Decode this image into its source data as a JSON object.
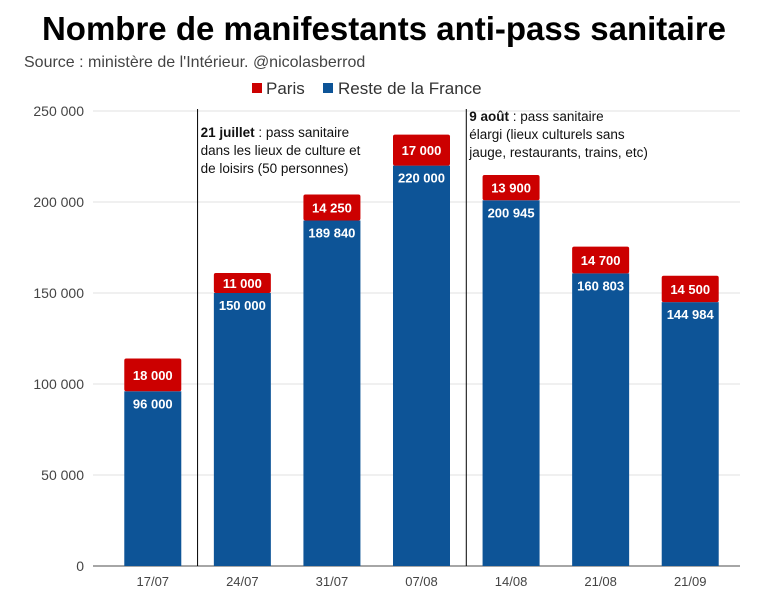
{
  "chart_data": {
    "type": "bar",
    "stacked": true,
    "title": "Nombre de manifestants anti-pass sanitaire",
    "subtitle": "Source : ministère de l'Intérieur. @nicolasberrod",
    "xlabel": "",
    "ylabel": "",
    "ylim": [
      0,
      250000
    ],
    "yticks": [
      0,
      50000,
      100000,
      150000,
      200000,
      250000
    ],
    "ytick_labels": [
      "0",
      "50 000",
      "100 000",
      "150 000",
      "200 000",
      "250 000"
    ],
    "grid": true,
    "legend_position": "top",
    "categories": [
      "17/07",
      "24/07",
      "31/07",
      "07/08",
      "14/08",
      "21/08",
      "21/09"
    ],
    "series": [
      {
        "name": "Reste de la France",
        "color": "#0d5497",
        "values": [
          96000,
          150000,
          189840,
          220000,
          200945,
          160803,
          144984
        ],
        "labels": [
          "96 000",
          "150 000",
          "189 840",
          "220 000",
          "200 945",
          "160 803",
          "144 984"
        ]
      },
      {
        "name": "Paris",
        "color": "#cc0000",
        "values": [
          18000,
          11000,
          14250,
          17000,
          13900,
          14700,
          14500
        ],
        "labels": [
          "18 000",
          "11 000",
          "14 250",
          "17 000",
          "13 900",
          "14 700",
          "14 500"
        ]
      }
    ],
    "legend": [
      "Paris",
      "Reste de la France"
    ],
    "annotations": [
      {
        "after_category_index": 0,
        "bold": "21 juillet",
        "lines": [
          " : pass sanitaire",
          "dans les lieux de culture et",
          "de loisirs (50 personnes)"
        ]
      },
      {
        "after_category_index": 3,
        "bold": "9 août",
        "lines": [
          " : pass sanitaire",
          "élargi (lieux culturels sans",
          "jauge, restaurants, trains, etc)"
        ]
      }
    ]
  }
}
